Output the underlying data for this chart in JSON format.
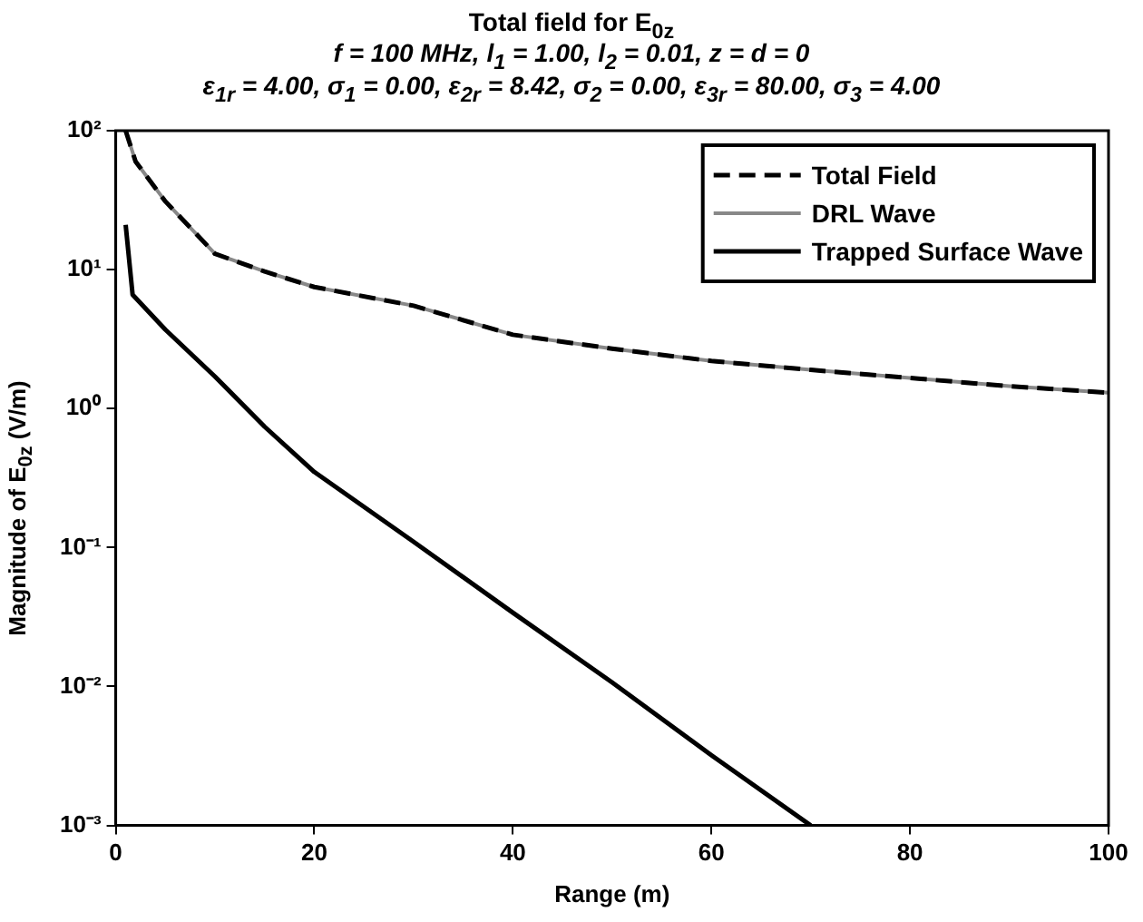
{
  "chart_data": {
    "type": "line",
    "title": "Total field for E$_{0z}$",
    "subtitle": [
      "f = 100 MHz, l$_{1}$ = 1.00, l$_{2}$ = 0.01, z = d = 0",
      "ε$_{1r}$ = 4.00, σ$_{1}$ = 0.00, ε$_{2r}$ = 8.42, σ$_{2}$ = 0.00, ε$_{3r}$ = 80.00, σ$_{3}$ = 4.00"
    ],
    "xlabel": "Range (m)",
    "ylabel": "Magnitude of E$_{0z}$ (V/m)",
    "log": "y",
    "grid": false,
    "legend": "top right",
    "marker": "none",
    "xlim": [
      0,
      100
    ],
    "xticks": [
      0,
      20,
      40,
      60,
      80,
      100
    ],
    "ylim": [
      0.001,
      100
    ],
    "yticks": [
      {
        "value": 0.001,
        "label": "10⁻³"
      },
      {
        "value": 0.01,
        "label": "10⁻²"
      },
      {
        "value": 0.1,
        "label": "10⁻¹"
      },
      {
        "value": 1,
        "label": "10⁰"
      },
      {
        "value": 10,
        "label": "10¹"
      },
      {
        "value": 100,
        "label": "10²"
      }
    ],
    "series": [
      {
        "name": "Total Field",
        "color": "#000000",
        "line_style": "dashed",
        "x": [
          1,
          2,
          5,
          10,
          15,
          20,
          30,
          40,
          50,
          60,
          70,
          80,
          90,
          100
        ],
        "values": [
          100,
          60,
          31,
          13,
          9.7,
          7.5,
          5.5,
          3.4,
          2.7,
          2.2,
          1.9,
          1.66,
          1.45,
          1.3
        ]
      },
      {
        "name": "DRL Wave",
        "color": "#888888",
        "line_style": "solid",
        "x": [
          1,
          2,
          5,
          10,
          15,
          20,
          30,
          40,
          50,
          60,
          70,
          80,
          90,
          100
        ],
        "values": [
          100,
          60,
          31,
          13,
          9.7,
          7.5,
          5.5,
          3.4,
          2.7,
          2.2,
          1.9,
          1.66,
          1.45,
          1.3
        ]
      },
      {
        "name": "Trapped Surface Wave",
        "color": "#000000",
        "line_style": "solid",
        "x": [
          1,
          1.7,
          5,
          10,
          15,
          20,
          30,
          40,
          50,
          60,
          70
        ],
        "values": [
          21,
          6.6,
          3.7,
          1.7,
          0.74,
          0.35,
          0.11,
          0.034,
          0.0107,
          0.0032,
          0.001
        ]
      }
    ]
  }
}
